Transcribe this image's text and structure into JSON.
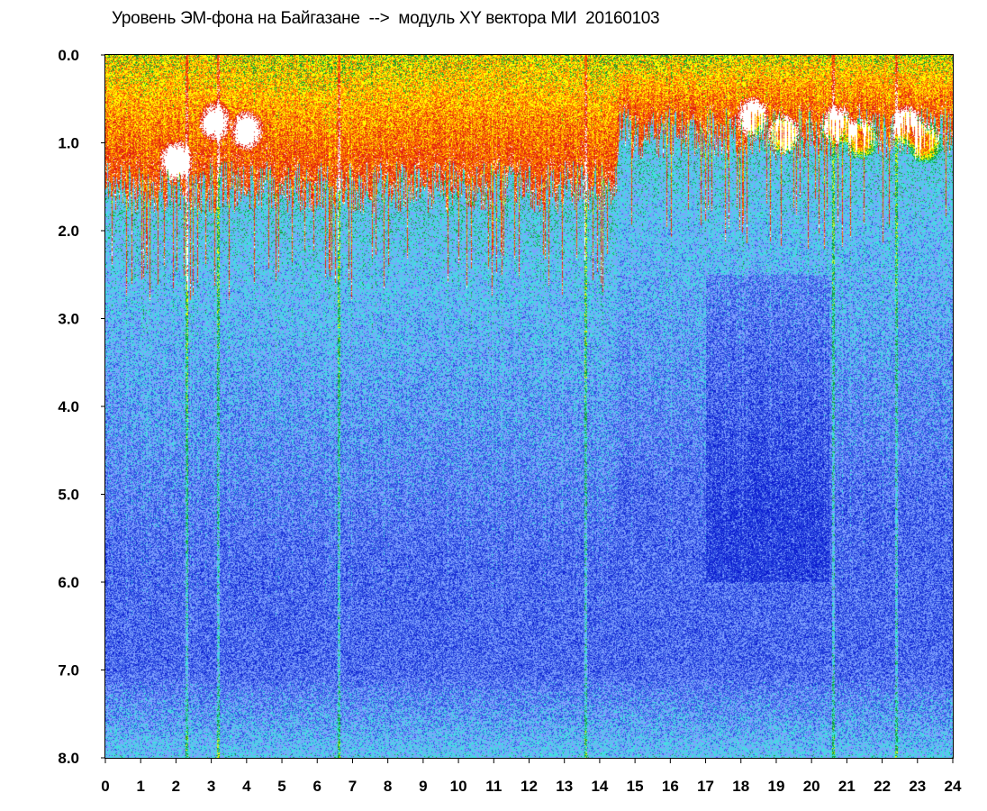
{
  "chart_data": {
    "type": "heatmap",
    "title": "Уровень ЭМ-фона на Байгазане  -->  модуль XY вектора МИ  20160103",
    "x_ticks": [
      "0",
      "1",
      "2",
      "3",
      "4",
      "5",
      "6",
      "7",
      "8",
      "9",
      "10",
      "11",
      "12",
      "13",
      "14",
      "15",
      "16",
      "17",
      "18",
      "19",
      "20",
      "21",
      "22",
      "23",
      "24"
    ],
    "y_ticks": [
      "0.0",
      "1.0",
      "2.0",
      "3.0",
      "4.0",
      "5.0",
      "6.0",
      "7.0",
      "8.0"
    ],
    "xlim": [
      0,
      24
    ],
    "ylim": [
      0,
      8
    ],
    "y_inverted": true,
    "color_scale": [
      "#ffffff",
      "#e02010",
      "#ff7a00",
      "#ffff00",
      "#10a030",
      "#40e0e0",
      "#7fa0ff",
      "#3050e0",
      "#0a1ad0"
    ],
    "high_level_blobs": [
      {
        "x": 2.0,
        "y": 1.2
      },
      {
        "x": 3.1,
        "y": 0.75
      },
      {
        "x": 4.0,
        "y": 0.85
      },
      {
        "x": 18.3,
        "y": 0.7
      },
      {
        "x": 19.2,
        "y": 0.9
      },
      {
        "x": 20.7,
        "y": 0.8
      },
      {
        "x": 21.4,
        "y": 0.95
      },
      {
        "x": 22.7,
        "y": 0.8
      },
      {
        "x": 23.2,
        "y": 1.0
      }
    ],
    "bright_columns": [
      2.3,
      3.2,
      6.6,
      13.6,
      20.6,
      22.4
    ]
  }
}
